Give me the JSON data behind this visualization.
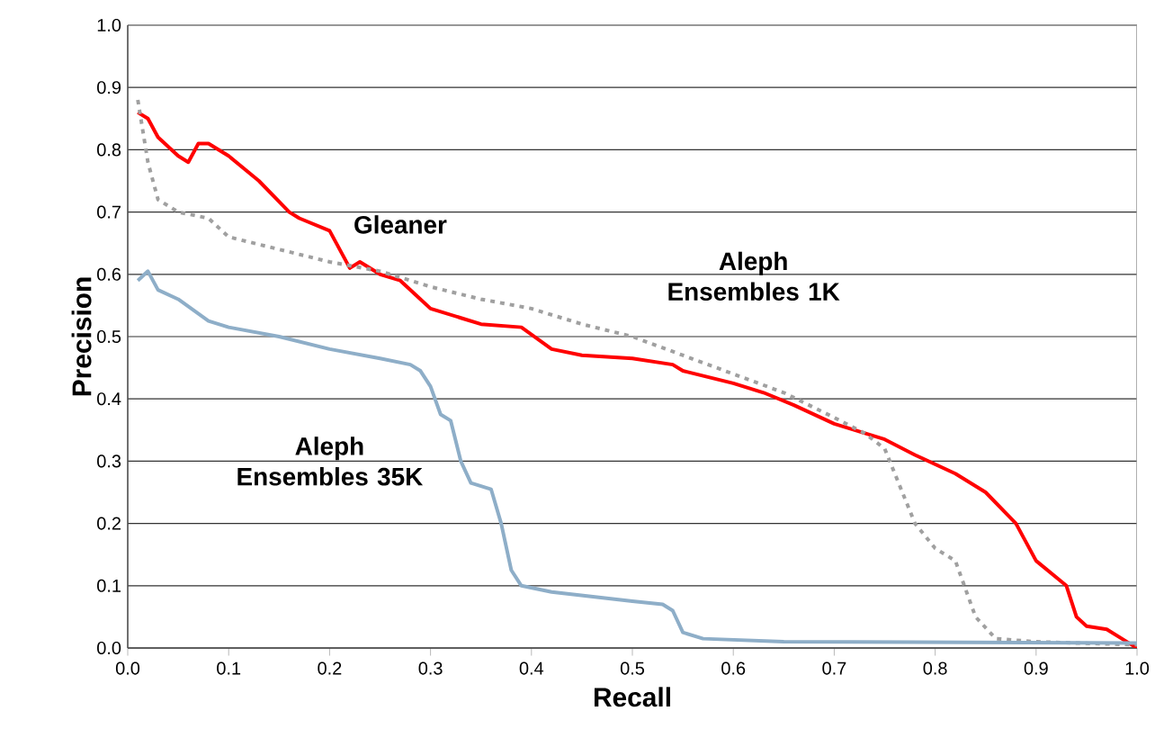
{
  "chart_data": {
    "type": "line",
    "xlabel": "Recall",
    "ylabel": "Precision",
    "xlim": [
      0,
      1
    ],
    "ylim": [
      0,
      1
    ],
    "xticks": [
      {
        "value": 0,
        "label": "0.0"
      },
      0.1,
      0.2,
      0.3,
      0.4,
      0.5,
      0.6,
      0.7,
      0.8,
      0.9,
      {
        "value": 1,
        "label": "1.0"
      }
    ],
    "yticks": [
      {
        "value": 0,
        "label": "0.0"
      },
      0.1,
      0.2,
      0.3,
      0.4,
      0.5,
      0.6,
      0.7,
      0.8,
      0.9,
      {
        "value": 1,
        "label": "1.0"
      }
    ],
    "grid": "y",
    "legend": false,
    "series": [
      {
        "name": "Gleaner",
        "color": "#ff0000",
        "line_style": "solid",
        "x": [
          0.01,
          0.02,
          0.03,
          0.05,
          0.06,
          0.07,
          0.08,
          0.1,
          0.13,
          0.16,
          0.17,
          0.2,
          0.21,
          0.22,
          0.23,
          0.25,
          0.27,
          0.29,
          0.3,
          0.33,
          0.35,
          0.39,
          0.42,
          0.45,
          0.5,
          0.54,
          0.55,
          0.6,
          0.63,
          0.66,
          0.7,
          0.75,
          0.78,
          0.82,
          0.85,
          0.88,
          0.89,
          0.9,
          0.93,
          0.94,
          0.95,
          0.97,
          0.99,
          1.0
        ],
        "values": [
          0.86,
          0.85,
          0.82,
          0.79,
          0.78,
          0.81,
          0.81,
          0.79,
          0.75,
          0.7,
          0.69,
          0.67,
          0.64,
          0.61,
          0.62,
          0.6,
          0.59,
          0.56,
          0.545,
          0.53,
          0.52,
          0.515,
          0.48,
          0.47,
          0.465,
          0.455,
          0.445,
          0.425,
          0.41,
          0.39,
          0.36,
          0.335,
          0.31,
          0.28,
          0.25,
          0.2,
          0.17,
          0.14,
          0.1,
          0.05,
          0.035,
          0.03,
          0.01,
          0.0
        ]
      },
      {
        "name": "Aleph Ensembles 1K",
        "color": "#a0a0a0",
        "line_style": "dotted",
        "x": [
          0.01,
          0.02,
          0.03,
          0.05,
          0.08,
          0.1,
          0.15,
          0.2,
          0.25,
          0.3,
          0.35,
          0.4,
          0.45,
          0.5,
          0.55,
          0.6,
          0.65,
          0.7,
          0.73,
          0.75,
          0.76,
          0.78,
          0.8,
          0.82,
          0.84,
          0.86,
          0.9,
          1.0
        ],
        "values": [
          0.88,
          0.78,
          0.72,
          0.7,
          0.69,
          0.66,
          0.64,
          0.62,
          0.605,
          0.58,
          0.56,
          0.545,
          0.52,
          0.5,
          0.47,
          0.44,
          0.41,
          0.37,
          0.345,
          0.32,
          0.28,
          0.2,
          0.16,
          0.14,
          0.05,
          0.015,
          0.01,
          0.005
        ]
      },
      {
        "name": "Aleph Ensembles 35K",
        "color": "#8eaec8",
        "line_style": "solid",
        "x": [
          0.01,
          0.02,
          0.03,
          0.05,
          0.08,
          0.1,
          0.15,
          0.2,
          0.25,
          0.28,
          0.29,
          0.3,
          0.31,
          0.32,
          0.33,
          0.34,
          0.36,
          0.37,
          0.38,
          0.39,
          0.42,
          0.5,
          0.53,
          0.54,
          0.55,
          0.57,
          0.65,
          1.0
        ],
        "values": [
          0.59,
          0.605,
          0.575,
          0.56,
          0.525,
          0.515,
          0.5,
          0.48,
          0.465,
          0.455,
          0.445,
          0.42,
          0.375,
          0.365,
          0.3,
          0.265,
          0.255,
          0.2,
          0.125,
          0.1,
          0.09,
          0.075,
          0.07,
          0.06,
          0.025,
          0.015,
          0.01,
          0.008
        ]
      }
    ]
  }
}
